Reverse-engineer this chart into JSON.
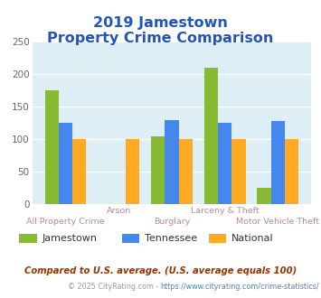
{
  "title_line1": "2019 Jamestown",
  "title_line2": "Property Crime Comparison",
  "title_color": "#2255bb",
  "categories": [
    "All Property Crime",
    "Arson",
    "Burglary",
    "Larceny & Theft",
    "Motor Vehicle Theft"
  ],
  "top_labels": [
    "",
    "Arson",
    "",
    "Larceny & Theft",
    ""
  ],
  "bottom_labels": [
    "All Property Crime",
    "",
    "Burglary",
    "",
    "Motor Vehicle Theft"
  ],
  "jamestown": [
    175,
    0,
    105,
    210,
    25
  ],
  "tennessee": [
    125,
    0,
    130,
    125,
    128
  ],
  "national": [
    100,
    100,
    100,
    100,
    100
  ],
  "jamestown_color": "#88bb33",
  "tennessee_color": "#4488ee",
  "national_color": "#ffaa22",
  "ylim": [
    0,
    250
  ],
  "yticks": [
    0,
    50,
    100,
    150,
    200,
    250
  ],
  "bg_color": "#ddeef5",
  "legend_labels": [
    "Jamestown",
    "Tennessee",
    "National"
  ],
  "footnote1": "Compared to U.S. average. (U.S. average equals 100)",
  "footnote2_prefix": "© 2025 CityRating.com - ",
  "footnote2_link": "https://www.cityrating.com/crime-statistics/",
  "footnote1_color": "#993300",
  "footnote2_color": "#999999",
  "footnote2_link_color": "#4488bb",
  "label_color": "#bb8899"
}
